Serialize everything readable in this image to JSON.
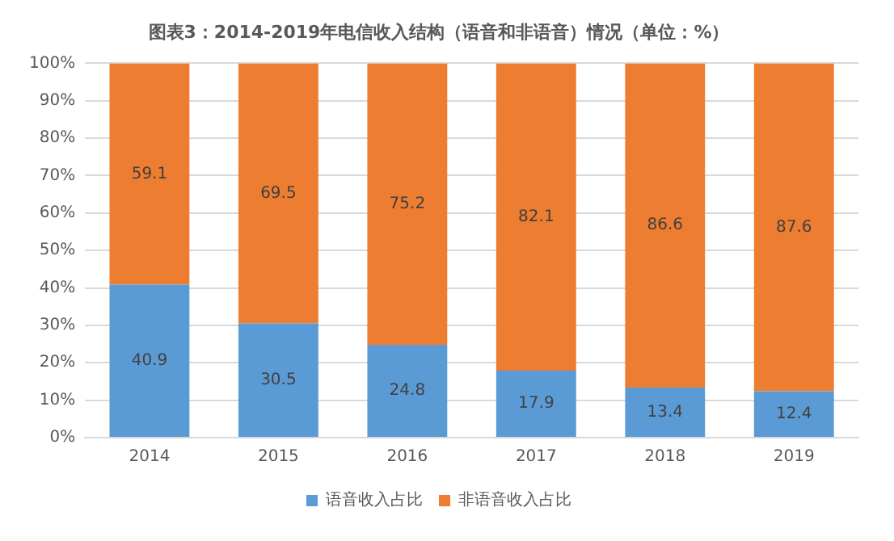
{
  "chart_data": {
    "type": "bar",
    "title": "图表3：2014-2019年电信收入结构（语音和非语音）情况（单位：%）",
    "categories": [
      "2014",
      "2015",
      "2016",
      "2017",
      "2018",
      "2019"
    ],
    "stacked": true,
    "series": [
      {
        "name": "语音收入占比",
        "color": "#5b9bd5",
        "values": [
          40.9,
          30.5,
          24.8,
          17.9,
          13.4,
          12.4
        ]
      },
      {
        "name": "非语音收入占比",
        "color": "#ed7d31",
        "values": [
          59.1,
          69.5,
          75.2,
          82.1,
          86.6,
          87.6
        ]
      }
    ],
    "ylim": [
      0,
      100
    ],
    "yticks": [
      {
        "value": 0,
        "label": "0%"
      },
      {
        "value": 10,
        "label": "10%"
      },
      {
        "value": 20,
        "label": "20%"
      },
      {
        "value": 30,
        "label": "30%"
      },
      {
        "value": 40,
        "label": "40%"
      },
      {
        "value": 50,
        "label": "50%"
      },
      {
        "value": 60,
        "label": "60%"
      },
      {
        "value": 70,
        "label": "70%"
      },
      {
        "value": 80,
        "label": "80%"
      },
      {
        "value": 90,
        "label": "90%"
      },
      {
        "value": 100,
        "label": "100%"
      }
    ],
    "grid": "y",
    "legend": "bottom",
    "data_labels": true
  }
}
